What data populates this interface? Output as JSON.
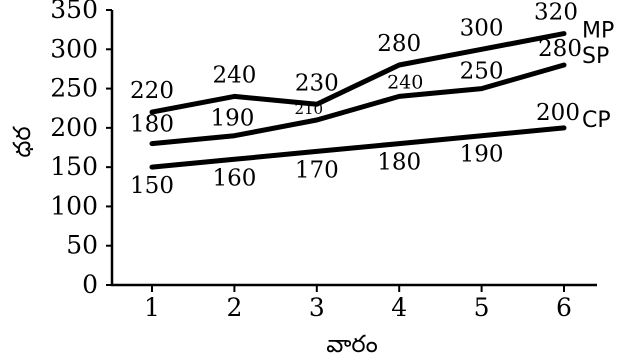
{
  "chart_data": {
    "type": "line",
    "xlabel": "వారం",
    "ylabel": "ధర",
    "x": [
      1,
      2,
      3,
      4,
      5,
      6
    ],
    "xlim": [
      0.5,
      6.5
    ],
    "ylim": [
      0,
      350
    ],
    "yticks": [
      0,
      50,
      100,
      150,
      200,
      250,
      300,
      350
    ],
    "xticks": [
      1,
      2,
      3,
      4,
      5,
      6
    ],
    "grid": false,
    "series_color": "#000000",
    "series": [
      {
        "name": "MP",
        "values": [
          220,
          240,
          230,
          280,
          300,
          320
        ],
        "labels": [
          "220",
          "240",
          "230",
          "280",
          "300",
          "320"
        ]
      },
      {
        "name": "SP",
        "values": [
          180,
          190,
          210,
          240,
          250,
          280
        ],
        "labels": [
          "180",
          "190",
          "210",
          "240",
          "250",
          "280"
        ]
      },
      {
        "name": "CP",
        "values": [
          150,
          160,
          170,
          180,
          190,
          200
        ],
        "labels": [
          "150",
          "160",
          "170",
          "180",
          "190",
          "200"
        ]
      }
    ]
  }
}
